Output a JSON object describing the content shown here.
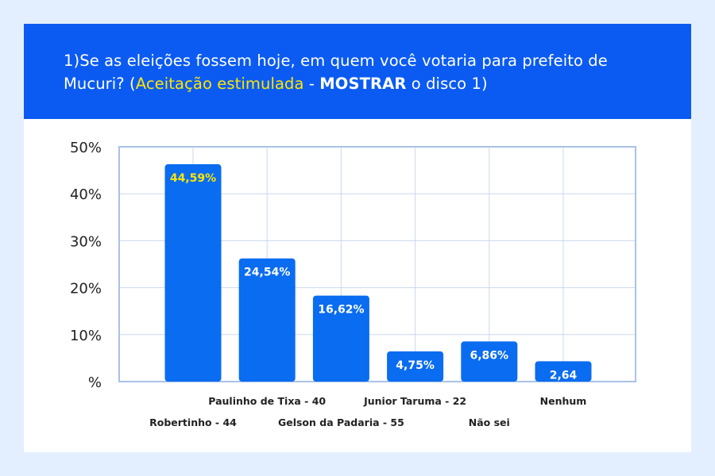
{
  "header": {
    "title_part1": "1)Se as eleições fossem hoje, em quem você votaria para prefeito de Mucuri? (",
    "title_highlight": "Aceitação estimulada",
    "title_part2": " - ",
    "title_strong": "MOSTRAR",
    "title_part3": " o disco 1)"
  },
  "colors": {
    "header_bg": "#0b5bf2",
    "bar": "#0a6cf0",
    "highlight_text": "#ffe600",
    "grid": "#c9d8ef",
    "frame": "#a9c2e8",
    "page_bg": "#e3efff"
  },
  "chart_data": {
    "type": "bar",
    "categories": [
      "Robertinho - 44",
      "Paulinho de Tixa - 40",
      "Gelson da Padaria - 55",
      "Junior Taruma - 22",
      "Não sei",
      "Nenhum"
    ],
    "values": [
      44.59,
      24.54,
      16.62,
      4.75,
      6.86,
      2.64
    ],
    "value_labels": [
      "44,59%",
      "24,54%",
      "16,62%",
      "4,75%",
      "6,86%",
      "2,64"
    ],
    "highlight_index": 0,
    "yticks": [
      "%",
      "10%",
      "20%",
      "30%",
      "40%",
      "50%"
    ],
    "ylim": [
      0,
      50
    ],
    "grid": true,
    "title": "",
    "xlabel": "",
    "ylabel": ""
  }
}
